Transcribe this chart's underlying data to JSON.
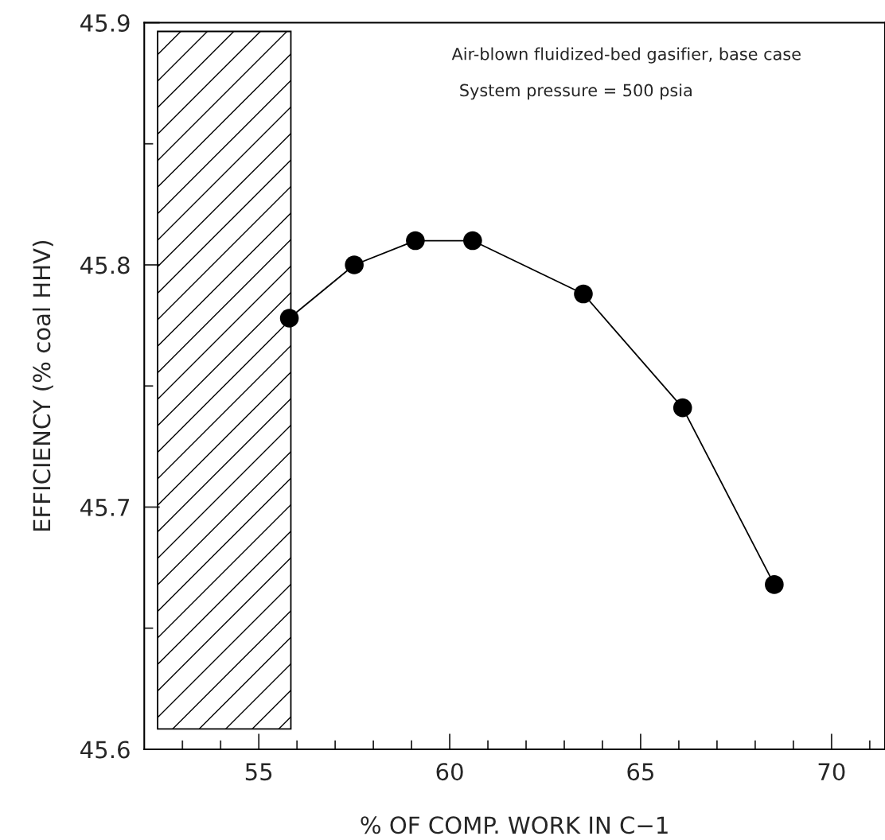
{
  "chart_data": {
    "type": "line",
    "xlabel": "% OF COMP. WORK IN C−1",
    "ylabel": "EFFICIENCY (% coal HHV)",
    "x": [
      55.8,
      57.5,
      59.1,
      60.6,
      63.5,
      66.1,
      68.5
    ],
    "series": [
      {
        "color": "#000000",
        "values": [
          45.778,
          45.8,
          45.81,
          45.81,
          45.788,
          45.741,
          45.668
        ]
      }
    ],
    "marker": "circle",
    "line_style": "solid",
    "xlim": [
      52,
      71.4
    ],
    "ylim": [
      45.6,
      45.9
    ],
    "xticks": [
      {
        "value": 53,
        "label": null
      },
      {
        "value": 54,
        "label": null
      },
      55,
      {
        "value": 56,
        "label": null
      },
      {
        "value": 57,
        "label": null
      },
      {
        "value": 58,
        "label": null
      },
      {
        "value": 59,
        "label": null
      },
      60,
      {
        "value": 61,
        "label": null
      },
      {
        "value": 62,
        "label": null
      },
      {
        "value": 63,
        "label": null
      },
      {
        "value": 64,
        "label": null
      },
      65,
      {
        "value": 66,
        "label": null
      },
      {
        "value": 67,
        "label": null
      },
      {
        "value": 68,
        "label": null
      },
      {
        "value": 69,
        "label": null
      },
      70,
      {
        "value": 71,
        "label": null
      }
    ],
    "yticks": [
      45.6,
      {
        "value": 45.65,
        "label": null
      },
      45.7,
      {
        "value": 45.75,
        "label": null
      },
      45.8,
      {
        "value": 45.85,
        "label": null
      },
      45.9
    ],
    "bands": [
      {
        "axis": "x",
        "from": 52.35,
        "to": 55.84,
        "color": "#000000"
      }
    ],
    "annotations": [
      "Air-blown fluidized-bed gasifier, base case",
      "System pressure = 500 psia"
    ],
    "grid": false,
    "legend": false
  }
}
